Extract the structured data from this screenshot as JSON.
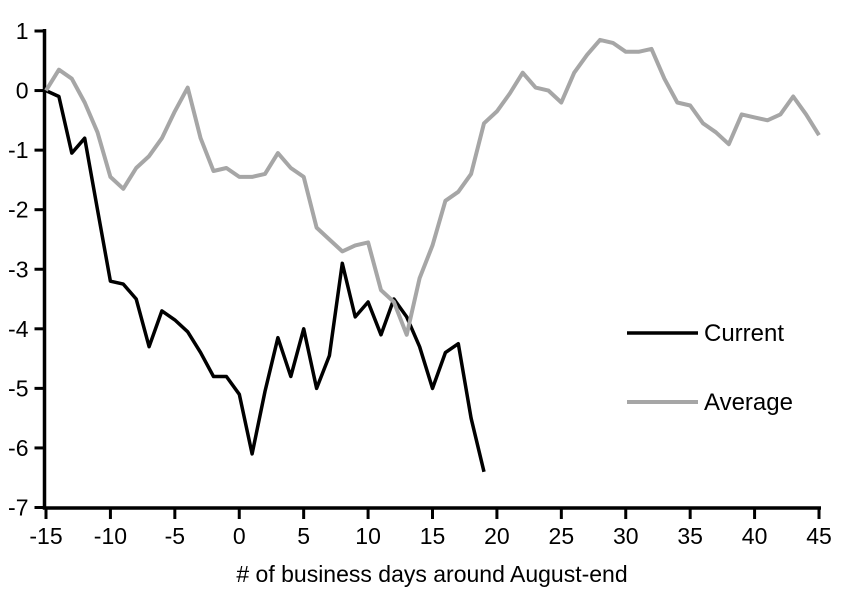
{
  "chart_data": {
    "type": "line",
    "title": "",
    "xlabel": "# of business days around August-end",
    "ylabel": "",
    "xlim": [
      -15,
      45
    ],
    "ylim": [
      -7,
      1
    ],
    "xticks": [
      -15,
      -10,
      -5,
      0,
      5,
      10,
      15,
      20,
      25,
      30,
      35,
      40,
      45
    ],
    "yticks": [
      1,
      0,
      -1,
      -2,
      -3,
      -4,
      -5,
      -6,
      -7
    ],
    "grid": false,
    "legend_position": "middle-right",
    "background_color": "#ffffff",
    "axis_color": "#000000",
    "series": [
      {
        "name": "Current",
        "color": "#000000",
        "stroke_width": 3.5,
        "x_start": -15,
        "x_step": 1,
        "values": [
          0.0,
          -0.1,
          -1.05,
          -0.8,
          -2.0,
          -3.2,
          -3.25,
          -3.5,
          -4.3,
          -3.7,
          -3.85,
          -4.05,
          -4.4,
          -4.8,
          -4.8,
          -5.1,
          -6.1,
          -5.05,
          -4.15,
          -4.8,
          -4.0,
          -5.0,
          -4.45,
          -2.9,
          -3.8,
          -3.55,
          -4.1,
          -3.5,
          -3.8,
          -4.3,
          -5.0,
          -4.4,
          -4.25,
          -5.5,
          -6.4
        ]
      },
      {
        "name": "Average",
        "color": "#a6a6a6",
        "stroke_width": 4,
        "x_start": -15,
        "x_step": 1,
        "values": [
          0.0,
          0.35,
          0.2,
          -0.2,
          -0.7,
          -1.45,
          -1.65,
          -1.3,
          -1.1,
          -0.8,
          -0.35,
          0.05,
          -0.8,
          -1.35,
          -1.3,
          -1.45,
          -1.45,
          -1.4,
          -1.05,
          -1.3,
          -1.45,
          -2.3,
          -2.5,
          -2.7,
          -2.6,
          -2.55,
          -3.35,
          -3.55,
          -4.1,
          -3.15,
          -2.6,
          -1.85,
          -1.7,
          -1.4,
          -0.55,
          -0.35,
          -0.05,
          0.3,
          0.05,
          0.0,
          -0.2,
          0.3,
          0.6,
          0.85,
          0.8,
          0.65,
          0.65,
          0.7,
          0.2,
          -0.2,
          -0.25,
          -0.55,
          -0.7,
          -0.9,
          -0.4,
          -0.45,
          -0.5,
          -0.4,
          -0.1,
          -0.4,
          -0.75
        ]
      }
    ]
  }
}
